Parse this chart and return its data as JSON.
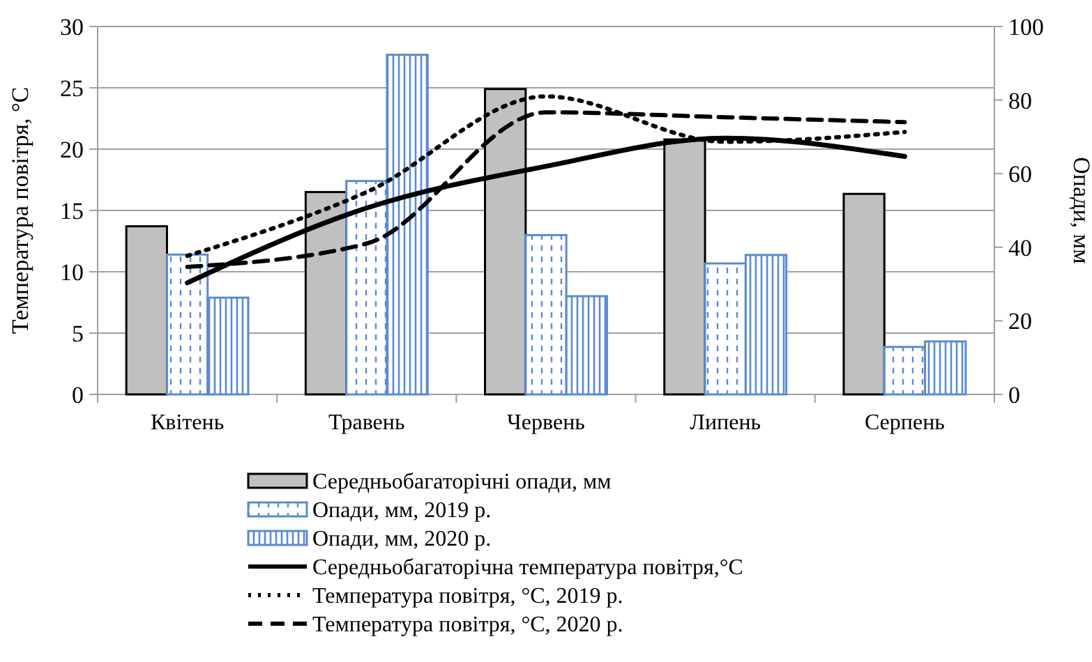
{
  "chart_data": {
    "type": "bar",
    "ylabel": "Температура повітря, °C",
    "y2label": "Опади, мм",
    "categories": [
      "Квітень",
      "Травень",
      "Червень",
      "Липень",
      "Серпень"
    ],
    "ylim": [
      0,
      30
    ],
    "yticks": [
      0,
      5,
      10,
      15,
      20,
      25,
      30
    ],
    "y2lim": [
      0,
      100
    ],
    "y2ticks": [
      0,
      20,
      40,
      60,
      80,
      100
    ],
    "grid": "y",
    "legend": "bottom",
    "series": [
      {
        "name": "Середньобагаторічні опади, мм",
        "axis": "y2",
        "color": "#c0c0c0",
        "values": [
          45.7,
          55,
          83,
          69.3,
          54.5
        ]
      },
      {
        "name": "Опади, мм, 2019 р.",
        "axis": "y2",
        "color": "#5b8bd0",
        "values": [
          38,
          58,
          43.3,
          35.6,
          12.9
        ]
      },
      {
        "name": "Опади, мм, 2020 р.",
        "axis": "y2",
        "color": "#5b8bd0",
        "values": [
          26.3,
          92.3,
          26.7,
          37.9,
          14.4
        ]
      },
      {
        "name": "Середньобагаторічна температура повітря,°C",
        "type": "line",
        "color": "#000000",
        "line_style": "solid",
        "values": [
          9.1,
          15.2,
          18.6,
          20.9,
          19.4
        ]
      },
      {
        "name": "Температура повітря, °C, 2019 р.",
        "type": "line",
        "color": "#000000",
        "line_style": "dotted",
        "values": [
          11.3,
          16.5,
          24.3,
          20.6,
          21.4
        ]
      },
      {
        "name": "Температура повітря, °C, 2020 р.",
        "type": "line",
        "color": "#000000",
        "line_style": "dashed",
        "values": [
          10.4,
          12.3,
          23,
          22.6,
          22.2
        ]
      }
    ]
  }
}
